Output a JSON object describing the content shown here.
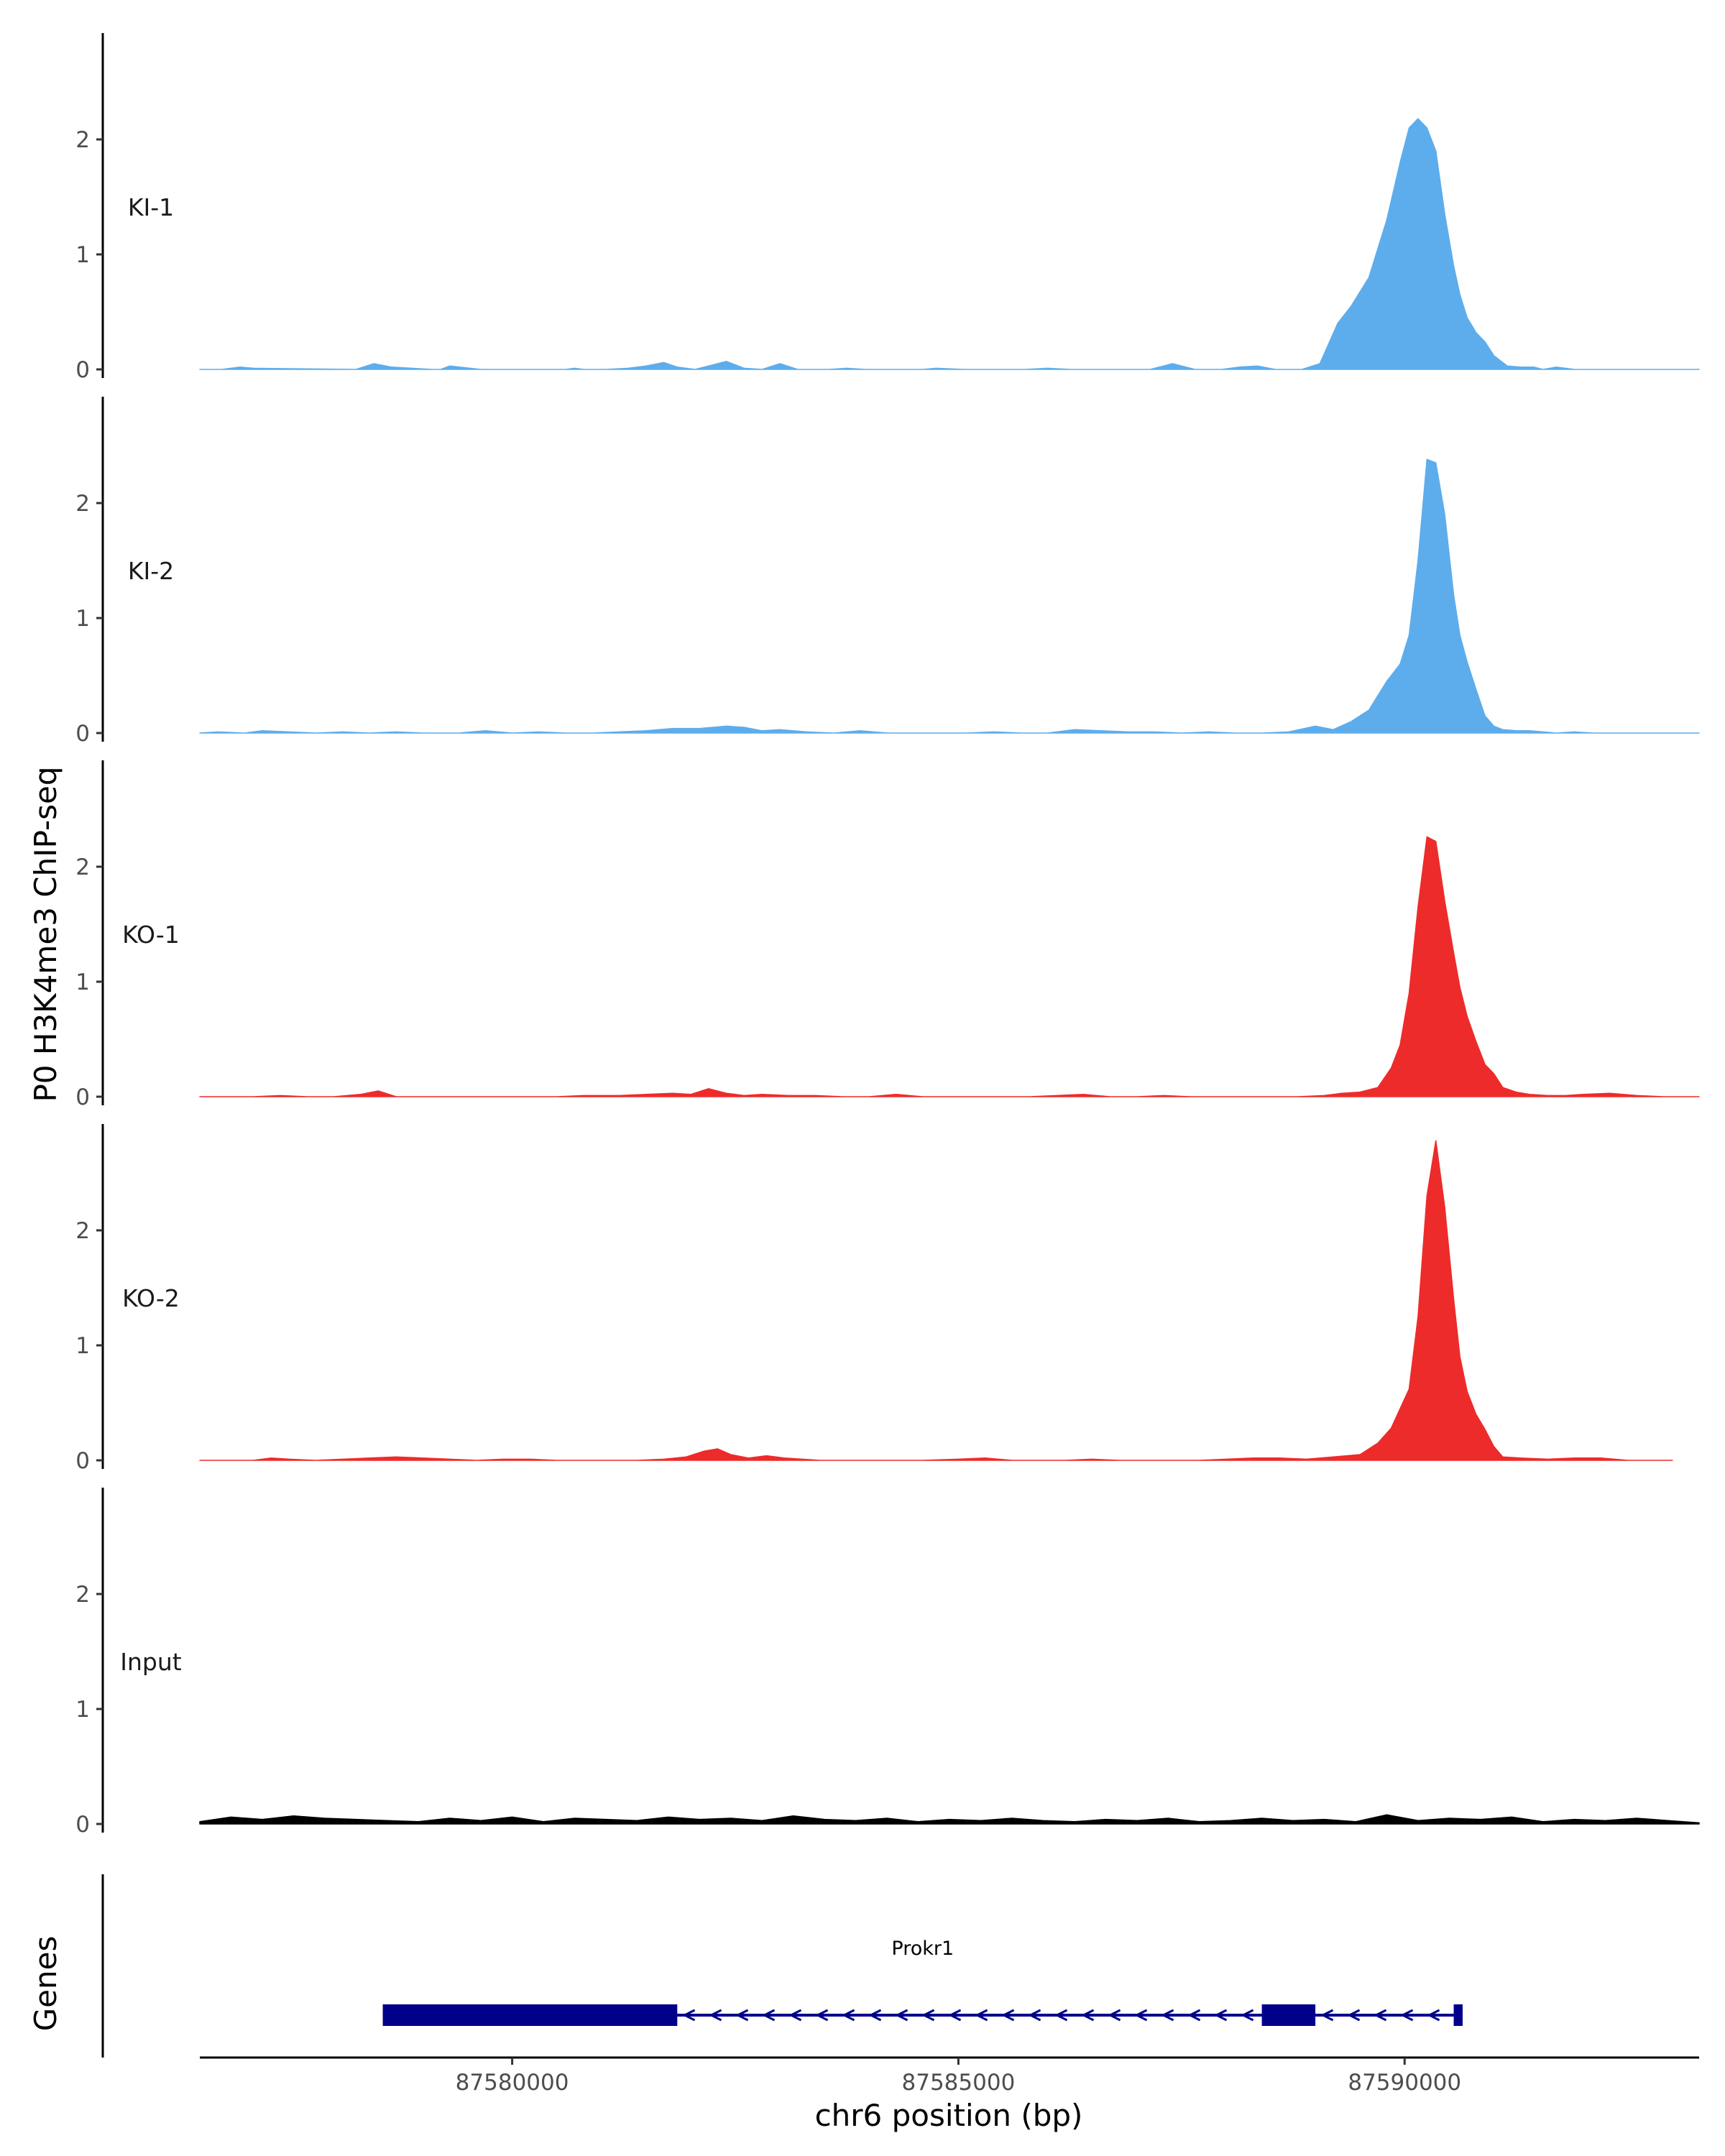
{
  "chart_data": {
    "type": "area",
    "ylabel": "P0 H3K4me3 ChIP-seq",
    "xlabel": "chr6 position (bp)",
    "xlim": [
      87576500,
      87593300
    ],
    "ylim": [
      0,
      2.9
    ],
    "x_ticks": [
      {
        "value": 87580000,
        "label": "87580000"
      },
      {
        "value": 87585000,
        "label": "87585000"
      },
      {
        "value": 87590000,
        "label": "87590000"
      }
    ],
    "y_ticks": [
      {
        "value": 0,
        "label": "0"
      },
      {
        "value": 1,
        "label": "1"
      },
      {
        "value": 2,
        "label": "2"
      }
    ],
    "grid": false,
    "tracks": [
      {
        "label": "KI-1",
        "color": "#5DADEC",
        "x": [
          87576500,
          87576750,
          87576950,
          87577100,
          87578250,
          87578450,
          87578650,
          87579100,
          87579200,
          87579300,
          87579650,
          87579800,
          87580150,
          87580600,
          87580700,
          87580800,
          87581050,
          87581300,
          87581500,
          87581700,
          87581850,
          87582050,
          87582200,
          87582400,
          87582600,
          87582800,
          87583000,
          87583200,
          87583400,
          87583550,
          87583750,
          87583950,
          87584250,
          87584600,
          87584750,
          87585050,
          87585300,
          87585750,
          87586000,
          87586250,
          87586300,
          87586550,
          87586800,
          87587150,
          87587400,
          87587650,
          87587950,
          87588150,
          87588350,
          87588550,
          87588850,
          87589050,
          87589250,
          87589400,
          87589600,
          87589800,
          87589950,
          87590050,
          87590150,
          87590250,
          87590350,
          87590450,
          87590550,
          87590620,
          87590700,
          87590800,
          87590900,
          87591000,
          87591150,
          87591300,
          87591450,
          87591550,
          87591700,
          87591900,
          87592100,
          87592350,
          87592650,
          87593300
        ],
        "y": [
          0,
          0,
          0.02,
          0.01,
          0,
          0.05,
          0.02,
          0,
          0,
          0.03,
          0,
          0,
          0,
          0,
          0.01,
          0,
          0,
          0.01,
          0.03,
          0.06,
          0.02,
          0,
          0.03,
          0.07,
          0.01,
          0,
          0.05,
          0,
          0,
          0,
          0.01,
          0,
          0,
          0,
          0.01,
          0,
          0,
          0,
          0.01,
          0,
          0,
          0,
          0,
          0,
          0.05,
          0,
          0,
          0.02,
          0.03,
          0,
          0,
          0.05,
          0.4,
          0.55,
          0.8,
          1.3,
          1.8,
          2.1,
          2.18,
          2.1,
          1.9,
          1.35,
          0.9,
          0.65,
          0.45,
          0.32,
          0.24,
          0.12,
          0.03,
          0.02,
          0.02,
          0,
          0.02,
          0,
          0,
          0,
          0,
          0
        ]
      },
      {
        "label": "KI-2",
        "color": "#5DADEC",
        "x": [
          87576500,
          87576700,
          87577000,
          87577200,
          87577500,
          87577800,
          87578100,
          87578400,
          87578700,
          87579000,
          87579400,
          87579700,
          87580000,
          87580300,
          87580600,
          87580900,
          87581200,
          87581500,
          87581800,
          87582100,
          87582400,
          87582600,
          87582800,
          87583000,
          87583300,
          87583600,
          87583900,
          87584200,
          87584500,
          87584800,
          87585100,
          87585400,
          87585700,
          87586000,
          87586300,
          87586600,
          87586900,
          87587200,
          87587500,
          87587800,
          87588100,
          87588400,
          87588700,
          87589000,
          87589200,
          87589400,
          87589600,
          87589800,
          87589950,
          87590050,
          87590150,
          87590250,
          87590350,
          87590450,
          87590550,
          87590620,
          87590700,
          87590800,
          87590900,
          87591000,
          87591100,
          87591250,
          87591400,
          87591550,
          87591700,
          87591900,
          87592100,
          87592300,
          87592500,
          87592800,
          87593100,
          87593300
        ],
        "y": [
          0,
          0.01,
          0,
          0.02,
          0.01,
          0,
          0.01,
          0,
          0.01,
          0,
          0,
          0.02,
          0,
          0.01,
          0,
          0,
          0.01,
          0.02,
          0.04,
          0.04,
          0.06,
          0.05,
          0.02,
          0.03,
          0.01,
          0,
          0.02,
          0,
          0,
          0,
          0,
          0.01,
          0,
          0,
          0.03,
          0.02,
          0.01,
          0.01,
          0,
          0.01,
          0,
          0,
          0.01,
          0.06,
          0.03,
          0.1,
          0.2,
          0.45,
          0.6,
          0.85,
          1.5,
          2.38,
          2.35,
          1.9,
          1.2,
          0.85,
          0.62,
          0.38,
          0.15,
          0.06,
          0.03,
          0.02,
          0.02,
          0.01,
          0,
          0.01,
          0,
          0,
          0,
          0,
          0,
          0
        ]
      },
      {
        "label": "KO-1",
        "color": "#EE2B2B",
        "x": [
          87576500,
          87576800,
          87577100,
          87577400,
          87577700,
          87578000,
          87578300,
          87578500,
          87578700,
          87579000,
          87579500,
          87580000,
          87580500,
          87580800,
          87581200,
          87581500,
          87581800,
          87582000,
          87582200,
          87582400,
          87582600,
          87582800,
          87583100,
          87583400,
          87583700,
          87584000,
          87584300,
          87584600,
          87584900,
          87585200,
          87585500,
          87585800,
          87586100,
          87586400,
          87586700,
          87587000,
          87587300,
          87587600,
          87587900,
          87588200,
          87588500,
          87588800,
          87589100,
          87589300,
          87589500,
          87589700,
          87589850,
          87589950,
          87590050,
          87590150,
          87590250,
          87590350,
          87590450,
          87590550,
          87590620,
          87590700,
          87590800,
          87590900,
          87591000,
          87591100,
          87591250,
          87591400,
          87591600,
          87591800,
          87592000,
          87592300,
          87592600,
          87592900,
          87593300
        ],
        "y": [
          0,
          0,
          0,
          0.01,
          0,
          0,
          0.02,
          0.05,
          0,
          0,
          0,
          0,
          0,
          0.01,
          0.01,
          0.02,
          0.03,
          0.02,
          0.07,
          0.03,
          0.01,
          0.02,
          0.01,
          0.01,
          0,
          0,
          0.02,
          0,
          0,
          0,
          0,
          0,
          0.01,
          0.02,
          0,
          0,
          0.01,
          0,
          0,
          0,
          0,
          0,
          0.01,
          0.03,
          0.04,
          0.08,
          0.25,
          0.45,
          0.9,
          1.65,
          2.26,
          2.22,
          1.7,
          1.25,
          0.95,
          0.7,
          0.48,
          0.28,
          0.2,
          0.08,
          0.04,
          0.02,
          0.01,
          0.01,
          0.02,
          0.03,
          0.01,
          0,
          0
        ]
      },
      {
        "label": "KO-2",
        "color": "#EE2B2B",
        "x": [
          87576500,
          87576800,
          87577100,
          87577300,
          87577500,
          87577800,
          87578100,
          87578400,
          87578700,
          87579000,
          87579300,
          87579600,
          87579900,
          87580200,
          87580500,
          87580800,
          87581100,
          87581400,
          87581700,
          87581950,
          87582150,
          87582300,
          87582450,
          87582650,
          87582850,
          87583050,
          87583250,
          87583450,
          87583800,
          87584200,
          87584600,
          87585000,
          87585300,
          87585600,
          87585900,
          87586200,
          87586500,
          87586800,
          87587100,
          87587400,
          87587700,
          87588000,
          87588300,
          87588600,
          87588900,
          87589200,
          87589500,
          87589700,
          87589850,
          87589950,
          87590050,
          87590150,
          87590250,
          87590350,
          87590450,
          87590550,
          87590620,
          87590700,
          87590800,
          87590900,
          87591000,
          87591100,
          87591300,
          87591600,
          87591900,
          87592200,
          87592500,
          87592800,
          87593000
        ],
        "y": [
          0,
          0,
          0,
          0.02,
          0.01,
          0,
          0.01,
          0.02,
          0.03,
          0.02,
          0.01,
          0,
          0.01,
          0.01,
          0,
          0,
          0,
          0,
          0.01,
          0.03,
          0.08,
          0.1,
          0.05,
          0.02,
          0.04,
          0.02,
          0.01,
          0,
          0,
          0,
          0,
          0.01,
          0.02,
          0,
          0,
          0,
          0.01,
          0,
          0,
          0,
          0,
          0.01,
          0.02,
          0.02,
          0.01,
          0.03,
          0.05,
          0.15,
          0.28,
          0.45,
          0.62,
          1.25,
          2.3,
          2.78,
          2.2,
          1.4,
          0.9,
          0.6,
          0.4,
          0.27,
          0.12,
          0.03,
          0.02,
          0.01,
          0.02,
          0.02,
          0,
          0,
          0
        ]
      },
      {
        "label": "Input",
        "color": "#000000",
        "x": [
          87576500,
          87576850,
          87577200,
          87577550,
          87577900,
          87578250,
          87578600,
          87578950,
          87579300,
          87579650,
          87580000,
          87580350,
          87580700,
          87581050,
          87581400,
          87581750,
          87582100,
          87582450,
          87582800,
          87583150,
          87583500,
          87583850,
          87584200,
          87584550,
          87584900,
          87585250,
          87585600,
          87585950,
          87586300,
          87586650,
          87587000,
          87587350,
          87587700,
          87588050,
          87588400,
          87588750,
          87589100,
          87589450,
          87589800,
          87590150,
          87590500,
          87590850,
          87591200,
          87591550,
          87591900,
          87592250,
          87592600,
          87592950,
          87593300
        ],
        "y": [
          0.02,
          0.06,
          0.04,
          0.07,
          0.05,
          0.04,
          0.03,
          0.02,
          0.05,
          0.03,
          0.06,
          0.02,
          0.05,
          0.04,
          0.03,
          0.06,
          0.04,
          0.05,
          0.03,
          0.07,
          0.04,
          0.03,
          0.05,
          0.02,
          0.04,
          0.03,
          0.05,
          0.03,
          0.02,
          0.04,
          0.03,
          0.05,
          0.02,
          0.03,
          0.05,
          0.03,
          0.04,
          0.02,
          0.08,
          0.03,
          0.05,
          0.04,
          0.06,
          0.02,
          0.04,
          0.03,
          0.05,
          0.03,
          0.01
        ]
      }
    ],
    "genes_track": {
      "label": "Genes",
      "gene_name": "Prokr1",
      "color": "#00008B",
      "strand": "-",
      "start": 87578550,
      "end": 87590650,
      "exons": [
        {
          "start": 87578550,
          "end": 87581850
        },
        {
          "start": 87588400,
          "end": 87589000
        },
        {
          "start": 87590550,
          "end": 87590650
        }
      ]
    }
  }
}
